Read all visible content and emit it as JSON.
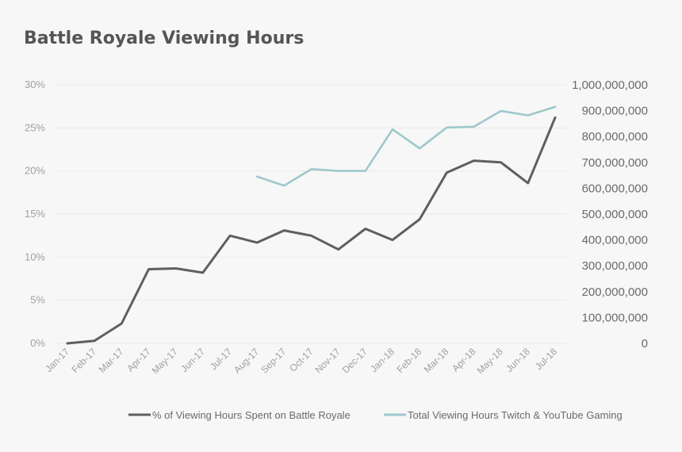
{
  "chart_data": {
    "type": "line",
    "title": "Battle Royale Viewing Hours",
    "xlabel": "",
    "ylabel": "",
    "categories": [
      "Jan-17",
      "Feb-17",
      "Mar-17",
      "Apr-17",
      "May-17",
      "Jun-17",
      "Jul-17",
      "Aug-17",
      "Sep-17",
      "Oct-17",
      "Nov-17",
      "Dec-17",
      "Jan-18",
      "Feb-18",
      "Mar-18",
      "Apr-18",
      "May-18",
      "Jun-18",
      "Jul-18"
    ],
    "y_left": {
      "lim": [
        0,
        30
      ],
      "ticks": [
        0,
        5,
        10,
        15,
        20,
        25,
        30
      ],
      "tick_labels": [
        "0%",
        "5%",
        "10%",
        "15%",
        "20%",
        "25%",
        "30%"
      ]
    },
    "y_right": {
      "lim": [
        0,
        1000000000
      ],
      "ticks": [
        0,
        100000000,
        200000000,
        300000000,
        400000000,
        500000000,
        600000000,
        700000000,
        800000000,
        900000000,
        1000000000
      ],
      "tick_labels": [
        "0",
        "100,000,000",
        "200,000,000",
        "300,000,000",
        "400,000,000",
        "500,000,000",
        "600,000,000",
        "700,000,000",
        "800,000,000",
        "900,000,000",
        "1,000,000,000"
      ]
    },
    "series": [
      {
        "name": "% of Viewing Hours Spent on Battle Royale",
        "axis": "left",
        "color": "#5f5f5f",
        "values": [
          0,
          0.3,
          2.3,
          8.6,
          8.7,
          8.2,
          12.5,
          11.7,
          13.1,
          12.5,
          10.9,
          13.3,
          12.0,
          14.4,
          19.8,
          21.2,
          21.0,
          18.6,
          26.2
        ]
      },
      {
        "name": "Total Viewing Hours Twitch & YouTube Gaming",
        "axis": "right",
        "color": "#9ec8cc",
        "values": [
          null,
          null,
          null,
          null,
          null,
          null,
          null,
          645000000,
          610000000,
          674000000,
          667000000,
          667000000,
          828000000,
          754000000,
          835000000,
          838000000,
          899000000,
          882000000,
          915000000
        ]
      }
    ],
    "grid": true,
    "legend": "bottom"
  }
}
